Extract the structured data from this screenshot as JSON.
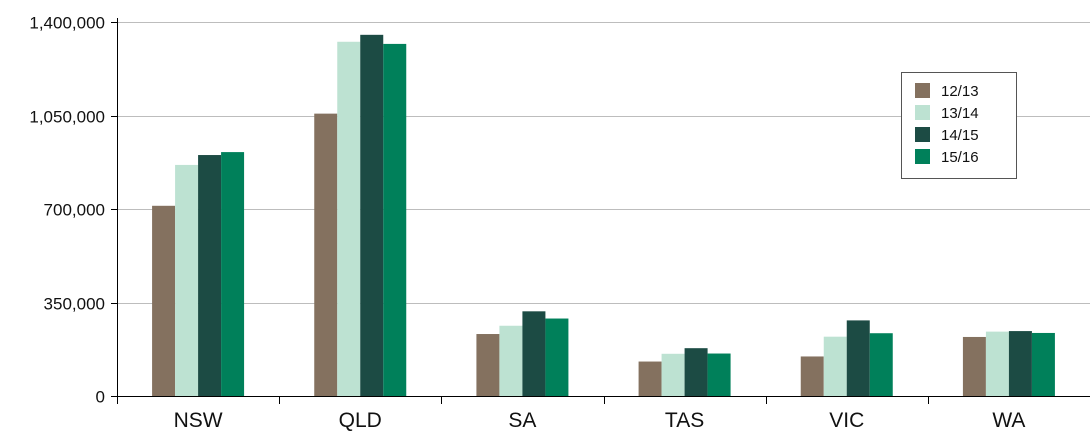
{
  "chart_data": {
    "type": "bar",
    "title": "",
    "xlabel": "",
    "ylabel": "",
    "categories": [
      "NSW",
      "QLD",
      "SA",
      "TAS",
      "VIC",
      "WA"
    ],
    "ylim": [
      0,
      1400000
    ],
    "yticks": [
      0,
      350000,
      700000,
      1050000,
      1400000
    ],
    "ytick_labels": [
      "0",
      "350,000",
      "700,000",
      "1,050,000",
      "1,400,000"
    ],
    "grid": true,
    "legend_position": "top-right",
    "series": [
      {
        "name": "12/13",
        "color": "#84715f",
        "values": [
          712000,
          1057000,
          232000,
          129000,
          148000,
          221000
        ]
      },
      {
        "name": "13/14",
        "color": "#bde2d2",
        "values": [
          865000,
          1326000,
          263000,
          158000,
          222000,
          241000
        ]
      },
      {
        "name": "14/15",
        "color": "#1c4b44",
        "values": [
          902000,
          1352000,
          317000,
          179000,
          283000,
          243000
        ]
      },
      {
        "name": "15/16",
        "color": "#00805a",
        "values": [
          913000,
          1318000,
          290000,
          159000,
          235000,
          236000
        ]
      }
    ]
  }
}
